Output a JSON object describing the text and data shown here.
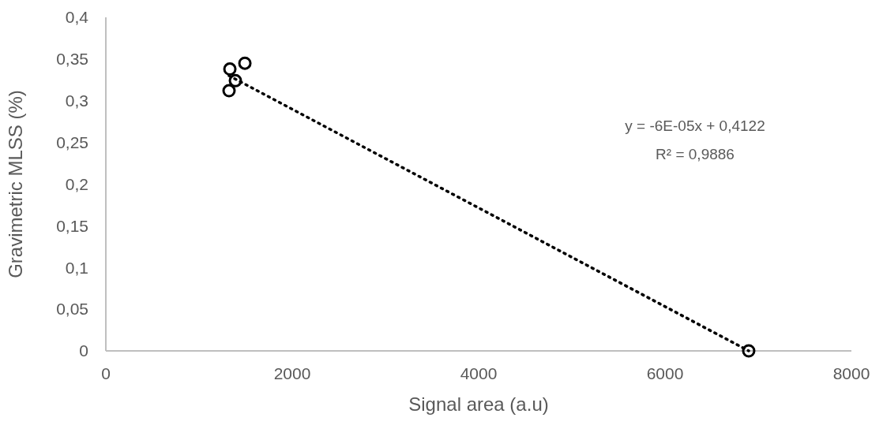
{
  "chart_data": {
    "type": "scatter",
    "xlabel": "Signal area (a.u)",
    "ylabel": "Gravimetric MLSS (%)",
    "xlim": [
      0,
      8000
    ],
    "xticks": [
      0,
      2000,
      4000,
      6000,
      8000
    ],
    "ylim": [
      0,
      0.4
    ],
    "yticks": [
      {
        "value": 0,
        "label": "0"
      },
      {
        "value": 0.05,
        "label": "0,05"
      },
      {
        "value": 0.1,
        "label": "0,1"
      },
      {
        "value": 0.15,
        "label": "0,15"
      },
      {
        "value": 0.2,
        "label": "0,2"
      },
      {
        "value": 0.25,
        "label": "0,25"
      },
      {
        "value": 0.3,
        "label": "0,3"
      },
      {
        "value": 0.35,
        "label": "0,35"
      },
      {
        "value": 0.4,
        "label": "0,4"
      }
    ],
    "grid": false,
    "series": [
      {
        "color": "#000000",
        "marker": "circle",
        "x": [
          1331,
          1492,
          1390,
          1322,
          6898
        ],
        "values": [
          0.338,
          0.345,
          0.324,
          0.312,
          0
        ]
      },
      {
        "type": "line",
        "color": "#000000",
        "line_style": "dotted",
        "marker": "none",
        "x": [
          1322,
          6898
        ],
        "values": [
          0.33,
          0
        ]
      }
    ],
    "annotations": [
      {
        "text": "y = -6E-05x + 0,4122\nR² = 0,9886"
      }
    ]
  }
}
